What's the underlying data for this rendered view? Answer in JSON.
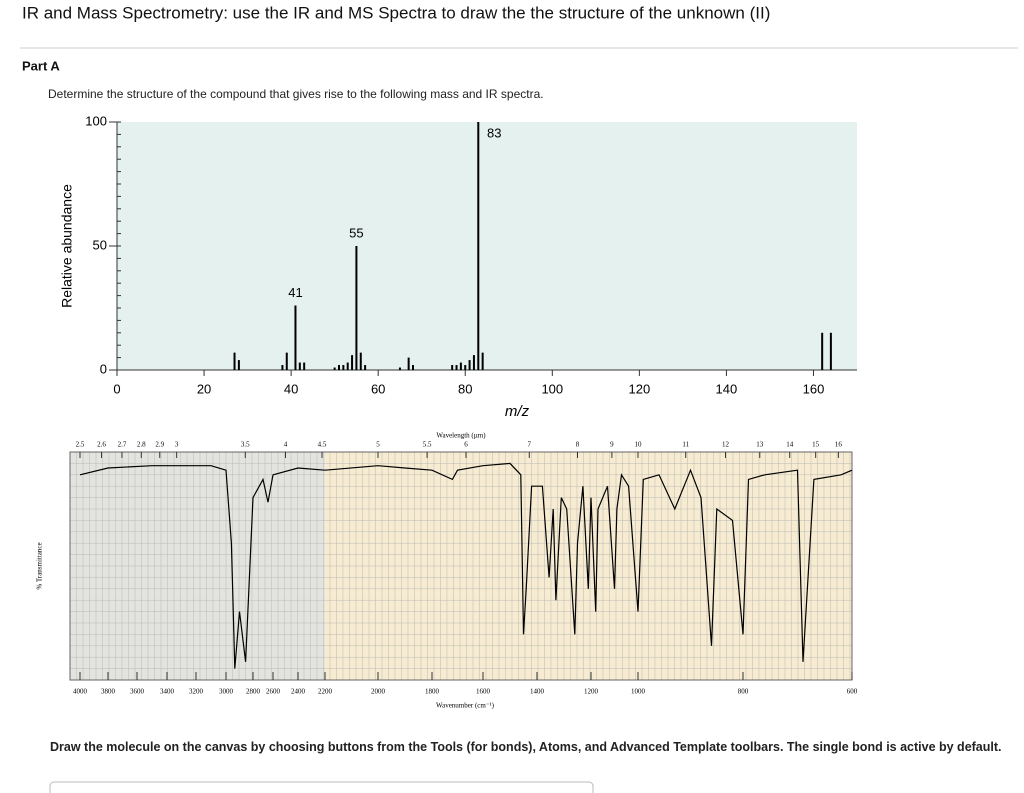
{
  "title": "IR and Mass Spectrometry: use the IR and MS Spectra to draw the the structure of the unknown (II)",
  "part": "Part A",
  "prompt": "Determine the structure of the compound that gives rise to the following mass and IR spectra.",
  "instructions": "Draw the molecule on the canvas by choosing buttons from the Tools (for bonds), Atoms, and Advanced Template toolbars. The single bond is active by default.",
  "chart_data": [
    {
      "type": "bar",
      "xlabel": "m/z",
      "ylabel": "Relative abundance",
      "x": [
        27,
        28,
        38,
        39,
        41,
        42,
        43,
        50,
        51,
        52,
        53,
        54,
        55,
        56,
        57,
        65,
        67,
        68,
        77,
        78,
        79,
        80,
        81,
        82,
        83,
        84,
        162,
        164
      ],
      "values": [
        7,
        4,
        2,
        7,
        26,
        3,
        3,
        1,
        2,
        2,
        3,
        6,
        50,
        7,
        2,
        1,
        5,
        2,
        2,
        2,
        3,
        2,
        4,
        6,
        100,
        7,
        15,
        15
      ],
      "peak_labels": [
        41,
        55,
        83
      ],
      "color": "#000000",
      "xlim": [
        0,
        170
      ],
      "xticks": [
        0,
        20,
        40,
        60,
        80,
        100,
        120,
        140,
        160
      ],
      "ylim": [
        0,
        100
      ],
      "yticks": [
        0,
        50,
        100
      ]
    },
    {
      "type": "line",
      "xlabel": "Wavenumber (cm⁻¹)",
      "x2label": "Wavelength (µm)",
      "ylabel": "% Transmittance",
      "x": [
        4000,
        3800,
        3500,
        3100,
        3000,
        2960,
        2935,
        2900,
        2855,
        2830,
        2800,
        2700,
        2650,
        2600,
        2400,
        2200,
        2000,
        1900,
        1800,
        1720,
        1700,
        1600,
        1500,
        1460,
        1450,
        1440,
        1420,
        1380,
        1355,
        1340,
        1330,
        1310,
        1290,
        1260,
        1250,
        1230,
        1210,
        1200,
        1180,
        1170,
        1130,
        1100,
        1090,
        1070,
        1040,
        1000,
        990,
        960,
        930,
        900,
        880,
        860,
        850,
        820,
        800,
        790,
        760,
        700,
        690,
        670,
        620,
        600
      ],
      "values": [
        90,
        93,
        94,
        94,
        92,
        60,
        5,
        30,
        8,
        40,
        80,
        88,
        78,
        90,
        93,
        92,
        94,
        93,
        92,
        88,
        92,
        94,
        95,
        90,
        20,
        40,
        85,
        85,
        45,
        75,
        35,
        80,
        75,
        20,
        60,
        85,
        40,
        80,
        30,
        75,
        85,
        40,
        75,
        90,
        85,
        30,
        88,
        90,
        75,
        92,
        80,
        15,
        75,
        70,
        20,
        88,
        90,
        92,
        8,
        88,
        90,
        92
      ],
      "color": "#000000",
      "xticks": [
        4000,
        3800,
        3600,
        3400,
        3200,
        3000,
        2800,
        2600,
        2400,
        2200,
        2000,
        1800,
        1600,
        1400,
        1200,
        1000,
        800,
        600
      ],
      "x2ticks": [
        2.5,
        2.6,
        2.7,
        2.8,
        2.9,
        3,
        3.5,
        4,
        4.5,
        5,
        5.5,
        6,
        7,
        8,
        9,
        10,
        11,
        12,
        13,
        14,
        15,
        16
      ],
      "ylim": [
        0,
        100
      ]
    }
  ]
}
